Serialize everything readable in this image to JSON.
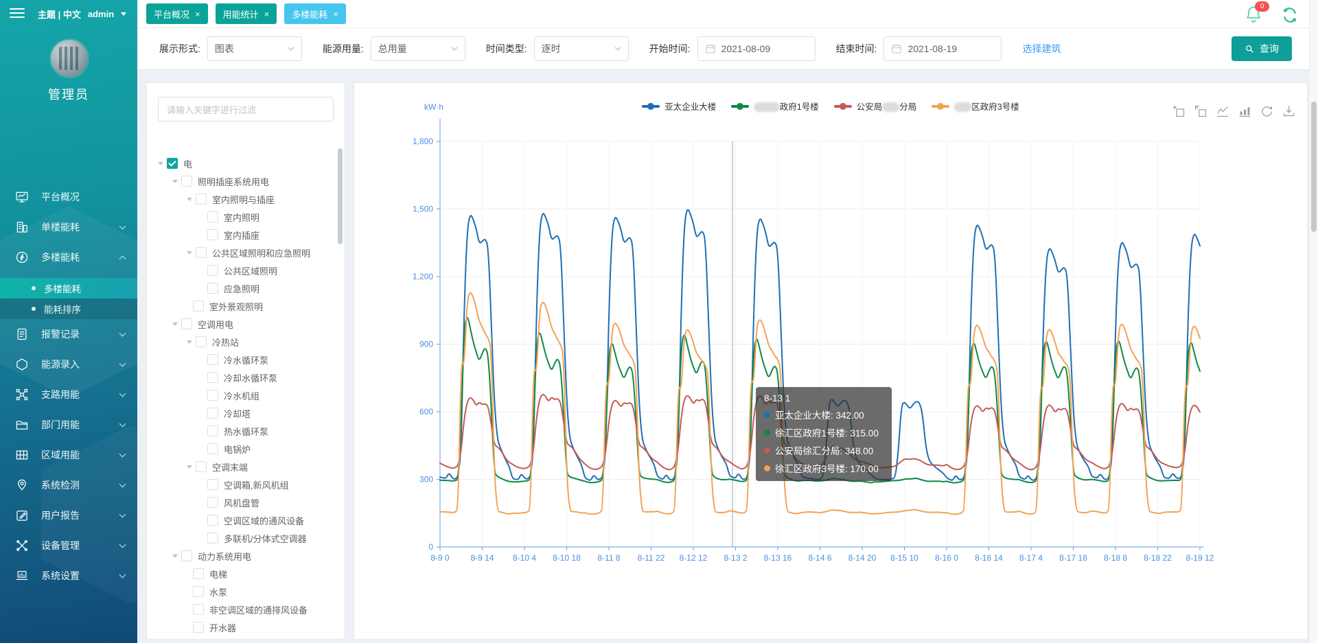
{
  "topbar": {
    "theme_label": "主题 | 中文",
    "user": "admin",
    "tabs": [
      {
        "label": "平台概况",
        "active": false
      },
      {
        "label": "用能统计",
        "active": false
      },
      {
        "label": "多楼能耗",
        "active": true
      }
    ],
    "notification_count": "0"
  },
  "sidebar": {
    "role": "管理员",
    "items": [
      {
        "icon": "platform-overview-icon",
        "label": "平台概况",
        "chevron": ""
      },
      {
        "icon": "single-building-icon",
        "label": "单楼能耗",
        "chevron": "down"
      },
      {
        "icon": "multi-building-icon",
        "label": "多楼能耗",
        "chevron": "up",
        "children": [
          {
            "label": "多楼能耗",
            "active": true
          },
          {
            "label": "能耗排序",
            "active": false
          }
        ]
      },
      {
        "icon": "alarm-record-icon",
        "label": "报警记录",
        "chevron": "down"
      },
      {
        "icon": "energy-entry-icon",
        "label": "能源录入",
        "chevron": "down"
      },
      {
        "icon": "branch-energy-icon",
        "label": "支路用能",
        "chevron": "down"
      },
      {
        "icon": "department-energy-icon",
        "label": "部门用能",
        "chevron": "down"
      },
      {
        "icon": "region-energy-icon",
        "label": "区域用能",
        "chevron": "down"
      },
      {
        "icon": "system-detect-icon",
        "label": "系统检测",
        "chevron": "down"
      },
      {
        "icon": "user-report-icon",
        "label": "用户报告",
        "chevron": "down"
      },
      {
        "icon": "device-mgmt-icon",
        "label": "设备管理",
        "chevron": "down"
      },
      {
        "icon": "system-settings-icon",
        "label": "系统设置",
        "chevron": "down"
      }
    ]
  },
  "filters": {
    "display_form": {
      "label": "展示形式:",
      "value": "图表"
    },
    "energy_usage": {
      "label": "能源用量:",
      "value": "总用量"
    },
    "time_type": {
      "label": "时间类型:",
      "value": "逐时"
    },
    "start_time": {
      "label": "开始时间:",
      "value": "2021-08-09"
    },
    "end_time": {
      "label": "结束时间:",
      "value": "2021-08-19"
    },
    "select_building": "选择建筑",
    "query_label": "查询"
  },
  "tree": {
    "filter_placeholder": "请输入关键字进行过滤",
    "nodes": [
      {
        "label": "电",
        "level": 0,
        "caret": true,
        "checked": true
      },
      {
        "label": "照明插座系统用电",
        "level": 1,
        "caret": true,
        "checked": false
      },
      {
        "label": "室内照明与插座",
        "level": 2,
        "caret": true,
        "checked": false
      },
      {
        "label": "室内照明",
        "level": 3,
        "caret": false,
        "checked": false
      },
      {
        "label": "室内插座",
        "level": 3,
        "caret": false,
        "checked": false
      },
      {
        "label": "公共区域照明和应急照明",
        "level": 2,
        "caret": true,
        "checked": false
      },
      {
        "label": "公共区域照明",
        "level": 3,
        "caret": false,
        "checked": false
      },
      {
        "label": "应急照明",
        "level": 3,
        "caret": false,
        "checked": false
      },
      {
        "label": "室外景观照明",
        "level": 2,
        "caret": false,
        "checked": false
      },
      {
        "label": "空调用电",
        "level": 1,
        "caret": true,
        "checked": false
      },
      {
        "label": "冷热站",
        "level": 2,
        "caret": true,
        "checked": false
      },
      {
        "label": "冷水循环泵",
        "level": 3,
        "caret": false,
        "checked": false
      },
      {
        "label": "冷却水循环泵",
        "level": 3,
        "caret": false,
        "checked": false
      },
      {
        "label": "冷水机组",
        "level": 3,
        "caret": false,
        "checked": false
      },
      {
        "label": "冷却塔",
        "level": 3,
        "caret": false,
        "checked": false
      },
      {
        "label": "热水循环泵",
        "level": 3,
        "caret": false,
        "checked": false
      },
      {
        "label": "电锅炉",
        "level": 3,
        "caret": false,
        "checked": false
      },
      {
        "label": "空调末端",
        "level": 2,
        "caret": true,
        "checked": false
      },
      {
        "label": "空调箱,新风机组",
        "level": 3,
        "caret": false,
        "checked": false
      },
      {
        "label": "风机盘管",
        "level": 3,
        "caret": false,
        "checked": false
      },
      {
        "label": "空调区域的通风设备",
        "level": 3,
        "caret": false,
        "checked": false
      },
      {
        "label": "多联机/分体式空调器",
        "level": 3,
        "caret": false,
        "checked": false
      },
      {
        "label": "动力系统用电",
        "level": 1,
        "caret": true,
        "checked": false
      },
      {
        "label": "电梯",
        "level": 2,
        "caret": false,
        "checked": false
      },
      {
        "label": "水泵",
        "level": 2,
        "caret": false,
        "checked": false
      },
      {
        "label": "非空调区域的通排风设备",
        "level": 2,
        "caret": false,
        "checked": false
      },
      {
        "label": "开水器",
        "level": 2,
        "caret": false,
        "checked": false
      }
    ]
  },
  "chart_data": {
    "type": "line",
    "unit_label": "kW·h",
    "ylim": [
      0,
      1800
    ],
    "y_ticks": [
      0,
      300,
      600,
      900,
      1200,
      1500,
      1800
    ],
    "y_tick_labels": [
      "0",
      "300",
      "600",
      "900",
      "1,200",
      "1,500",
      "1,800"
    ],
    "x_tick_labels": [
      "8-9 0",
      "8-9 14",
      "8-10 4",
      "8-10 18",
      "8-11 8",
      "8-11 22",
      "8-12 12",
      "8-13 2",
      "8-13 16",
      "8-14 6",
      "8-14 20",
      "8-15 10",
      "8-16 0",
      "8-16 14",
      "8-17 4",
      "8-17 18",
      "8-18 8",
      "8-18 22",
      "8-19 12"
    ],
    "hours_per_tick": 14,
    "total_hours": 253,
    "days": [
      "8-9",
      "8-10",
      "8-11",
      "8-12",
      "8-13",
      "8-14",
      "8-15",
      "8-16",
      "8-17",
      "8-18",
      "8-19"
    ],
    "day_types": [
      "workday",
      "workday",
      "workday",
      "workday",
      "workday",
      "weekend",
      "weekend",
      "workday",
      "workday",
      "workday",
      "workday"
    ],
    "last_day_points": 13,
    "style": {
      "axis_label_color": "#4a90e2",
      "axis_line_color": "#5da0e8",
      "grid_color": "#ececec",
      "vgrid_color": "#f4f4f4",
      "pointer_color": "#9aa0a6"
    },
    "legend": [
      {
        "pre": "",
        "blur": "",
        "post": "亚太企业大楼",
        "color": "#1f6eb4"
      },
      {
        "pre": "",
        "blur": "徐汇区",
        "post": "政府1号楼",
        "color": "#0e8843"
      },
      {
        "pre": "公安局",
        "blur": "徐汇",
        "post": "分局",
        "color": "#c45a54"
      },
      {
        "pre": "",
        "blur": "徐汇",
        "post": "区政府3号楼",
        "color": "#f4a254"
      }
    ],
    "series": [
      {
        "name": "亚太企业大楼",
        "color": "#1f6eb4",
        "base": 300,
        "weekday_profile": [
          310,
          304,
          300,
          326,
          303,
          299,
          312,
          430,
          1050,
          1400,
          1475,
          1450,
          1410,
          1345,
          1358,
          1372,
          1335,
          1000,
          640,
          478,
          440,
          410,
          385,
          362
        ],
        "weekend_profile": [
          312,
          306,
          300,
          299,
          297,
          296,
          300,
          308,
          430,
          638,
          655,
          632,
          618,
          640,
          652,
          648,
          600,
          460,
          395,
          372,
          358,
          346,
          336,
          326
        ],
        "day_scales": [
          1,
          1.01,
          1,
          1.03,
          0.99,
          1,
          0.97,
          0.97,
          0.88,
          0.9,
          0.93
        ]
      },
      {
        "name": "徐汇区政府1号楼",
        "color": "#0e8843",
        "base": 290,
        "weekday_profile": [
          296,
          293,
          291,
          290,
          290,
          292,
          300,
          560,
          960,
          1030,
          968,
          905,
          862,
          822,
          862,
          890,
          855,
          620,
          330,
          312,
          306,
          301,
          298,
          296
        ],
        "weekend_profile": [
          295,
          293,
          291,
          290,
          289,
          290,
          292,
          294,
          296,
          298,
          300,
          299,
          297,
          298,
          300,
          298,
          296,
          294,
          293,
          292,
          291,
          290,
          290,
          289
        ],
        "day_scales": [
          1,
          0.91,
          0.85,
          0.9,
          0.87,
          1,
          0.97,
          0.85,
          0.86,
          0.86,
          0.85
        ]
      },
      {
        "name": "公安局徐汇分局",
        "color": "#c45a54",
        "base": 352,
        "weekday_profile": [
          372,
          362,
          354,
          349,
          346,
          350,
          362,
          425,
          565,
          640,
          660,
          648,
          622,
          643,
          632,
          640,
          626,
          545,
          455,
          443,
          432,
          412,
          392,
          380
        ],
        "weekend_profile": [
          370,
          362,
          356,
          352,
          350,
          352,
          358,
          368,
          395,
          425,
          445,
          440,
          430,
          438,
          433,
          428,
          415,
          398,
          388,
          382,
          378,
          374,
          372,
          370
        ],
        "day_scales": [
          1,
          1.06,
          0.99,
          1.06,
          1.04,
          1,
          0.4,
          0.91,
          0.92,
          0.93,
          0.9
        ]
      },
      {
        "name": "徐汇区政府3号楼",
        "color": "#f4a254",
        "base": 151,
        "weekday_profile": [
          156,
          153,
          151,
          150,
          150,
          152,
          170,
          835,
          790,
          1090,
          1130,
          1105,
          1058,
          1000,
          978,
          948,
          930,
          880,
          330,
          158,
          155,
          153,
          152,
          151
        ],
        "weekend_profile": [
          153,
          152,
          151,
          150,
          150,
          151,
          152,
          154,
          156,
          158,
          160,
          159,
          158,
          160,
          159,
          158,
          157,
          156,
          155,
          154,
          153,
          152,
          152,
          151
        ],
        "day_scales": [
          1,
          0.96,
          0.87,
          0.84,
          0.88,
          1,
          1,
          0.86,
          0.84,
          0.86,
          0.85
        ]
      }
    ],
    "tooltip": {
      "title": "8-13 1",
      "pointer_hour": 97,
      "rows": [
        {
          "name": "亚太企业大楼",
          "value": "342.00",
          "color": "#1f6eb4"
        },
        {
          "name": "徐汇区政府1号楼",
          "value": "315.00",
          "color": "#0e8843"
        },
        {
          "name": "公安局徐汇分局",
          "value": "348.00",
          "color": "#c45a54"
        },
        {
          "name": "徐汇区政府3号楼",
          "value": "170.00",
          "color": "#f4a254"
        }
      ]
    },
    "toolbox_icons": [
      "zoom-select-icon",
      "zoom-reset-icon",
      "line-chart-icon",
      "bar-chart-icon",
      "restore-icon",
      "download-icon"
    ]
  }
}
